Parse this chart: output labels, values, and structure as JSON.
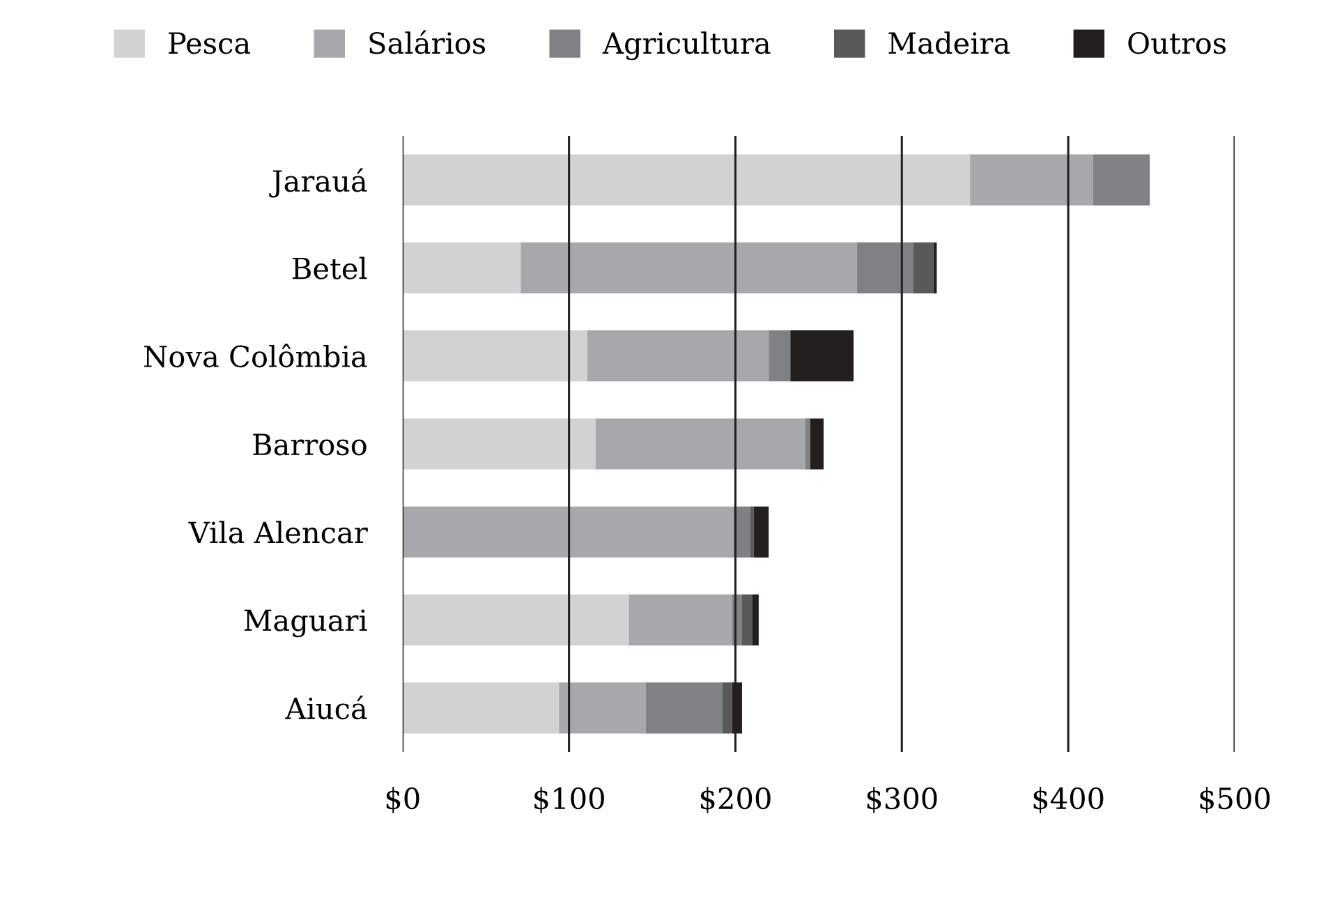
{
  "chart_data": {
    "type": "bar",
    "orientation": "horizontal",
    "stacked": true,
    "categories": [
      "Jarauá",
      "Betel",
      "Nova Colômbia",
      "Barroso",
      "Vila Alencar",
      "Maguari",
      "Aiucá"
    ],
    "series": [
      {
        "name": "Pesca",
        "color": "#d1d2d4",
        "values": [
          341,
          71,
          111,
          116,
          0,
          136,
          94
        ]
      },
      {
        "name": "Salários",
        "color": "#a7a8ab",
        "values": [
          74,
          202,
          109,
          126,
          199,
          62,
          52
        ]
      },
      {
        "name": "Agricultura",
        "color": "#808184",
        "values": [
          34,
          34,
          13,
          3,
          10,
          6,
          46
        ]
      },
      {
        "name": "Madeira",
        "color": "#58595b",
        "values": [
          0,
          12,
          0,
          0,
          2,
          6,
          6
        ]
      },
      {
        "name": "Outros",
        "color": "#231f20",
        "values": [
          0,
          2,
          38,
          8,
          9,
          4,
          6
        ]
      }
    ],
    "xlim": [
      0,
      500
    ],
    "xticks": [
      {
        "value": 0,
        "label": "$0"
      },
      {
        "value": 100,
        "label": "$100"
      },
      {
        "value": 200,
        "label": "$200"
      },
      {
        "value": 300,
        "label": "$300"
      },
      {
        "value": 400,
        "label": "$400"
      },
      {
        "value": 500,
        "label": "$500"
      }
    ],
    "grid": "x",
    "legend": "top"
  }
}
